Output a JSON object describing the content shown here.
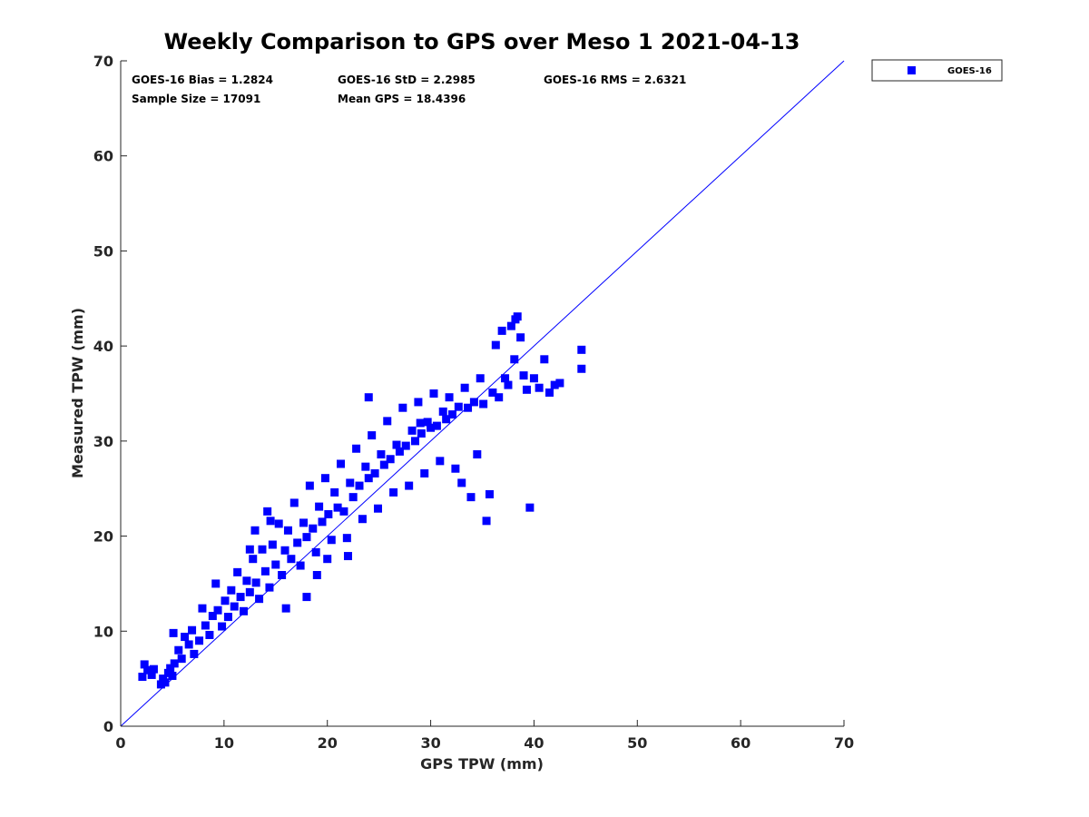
{
  "chart_data": {
    "type": "scatter",
    "title": "Weekly Comparison to GPS over Meso 1 2021-04-13",
    "xlabel": "GPS TPW (mm)",
    "ylabel": "Measured TPW (mm)",
    "xlim": [
      0,
      70
    ],
    "ylim": [
      0,
      70
    ],
    "xticks": [
      0,
      10,
      20,
      30,
      40,
      50,
      60,
      70
    ],
    "yticks": [
      0,
      10,
      20,
      30,
      40,
      50,
      60,
      70
    ],
    "grid": false,
    "legend_position": "outside-top-right",
    "colors": {
      "series": "#0000ff",
      "axis": "#262626"
    },
    "reference_line": {
      "name": "1:1",
      "x": [
        0,
        70
      ],
      "y": [
        0,
        70
      ]
    },
    "stats": {
      "bias": "GOES-16 Bias = 1.2824",
      "std": "GOES-16 StD = 2.2985",
      "rms": "GOES-16 RMS = 2.6321",
      "sample_size": "Sample Size = 17091",
      "mean_gps": "Mean GPS = 18.4396"
    },
    "series": [
      {
        "name": "GOES-16",
        "marker": "square",
        "color": "#0000ff",
        "points": [
          [
            2.1,
            5.2
          ],
          [
            2.3,
            6.5
          ],
          [
            2.6,
            5.9
          ],
          [
            3.0,
            5.4
          ],
          [
            3.2,
            6.0
          ],
          [
            3.9,
            4.4
          ],
          [
            4.1,
            5.0
          ],
          [
            4.3,
            4.6
          ],
          [
            4.6,
            5.6
          ],
          [
            4.8,
            6.1
          ],
          [
            5.0,
            5.3
          ],
          [
            5.2,
            6.6
          ],
          [
            5.1,
            9.8
          ],
          [
            5.6,
            8.0
          ],
          [
            5.9,
            7.1
          ],
          [
            6.2,
            9.4
          ],
          [
            6.6,
            8.6
          ],
          [
            6.9,
            10.1
          ],
          [
            7.1,
            7.6
          ],
          [
            7.6,
            9.0
          ],
          [
            7.9,
            12.4
          ],
          [
            8.2,
            10.6
          ],
          [
            8.6,
            9.6
          ],
          [
            8.9,
            11.6
          ],
          [
            9.2,
            15.0
          ],
          [
            9.4,
            12.2
          ],
          [
            9.8,
            10.5
          ],
          [
            10.1,
            13.2
          ],
          [
            10.4,
            11.5
          ],
          [
            10.7,
            14.3
          ],
          [
            11.0,
            12.6
          ],
          [
            11.3,
            16.2
          ],
          [
            11.6,
            13.6
          ],
          [
            11.9,
            12.1
          ],
          [
            12.2,
            15.3
          ],
          [
            12.5,
            14.1
          ],
          [
            12.8,
            17.6
          ],
          [
            13.1,
            15.1
          ],
          [
            13.4,
            13.4
          ],
          [
            13.7,
            18.6
          ],
          [
            14.0,
            16.3
          ],
          [
            14.2,
            22.6
          ],
          [
            14.4,
            14.6
          ],
          [
            14.7,
            19.1
          ],
          [
            15.0,
            17.0
          ],
          [
            15.3,
            21.3
          ],
          [
            15.6,
            15.9
          ],
          [
            15.9,
            18.5
          ],
          [
            16.2,
            20.6
          ],
          [
            16.5,
            17.6
          ],
          [
            16.8,
            23.5
          ],
          [
            17.1,
            19.3
          ],
          [
            17.4,
            16.9
          ],
          [
            17.7,
            21.4
          ],
          [
            18.0,
            19.9
          ],
          [
            18.3,
            25.3
          ],
          [
            18.6,
            20.8
          ],
          [
            18.9,
            18.3
          ],
          [
            19.2,
            23.1
          ],
          [
            19.5,
            21.5
          ],
          [
            19.8,
            26.1
          ],
          [
            20.1,
            22.3
          ],
          [
            20.4,
            19.6
          ],
          [
            20.7,
            24.6
          ],
          [
            21.0,
            23.0
          ],
          [
            21.3,
            27.6
          ],
          [
            21.6,
            22.6
          ],
          [
            21.9,
            19.8
          ],
          [
            22.2,
            25.6
          ],
          [
            22.5,
            24.1
          ],
          [
            22.8,
            29.2
          ],
          [
            23.1,
            25.3
          ],
          [
            23.4,
            21.8
          ],
          [
            23.7,
            27.3
          ],
          [
            24.0,
            26.1
          ],
          [
            24.3,
            30.6
          ],
          [
            24.6,
            26.6
          ],
          [
            24.9,
            22.9
          ],
          [
            25.2,
            28.6
          ],
          [
            25.5,
            27.5
          ],
          [
            25.8,
            32.1
          ],
          [
            26.1,
            28.1
          ],
          [
            26.4,
            24.6
          ],
          [
            26.7,
            29.6
          ],
          [
            27.0,
            28.9
          ],
          [
            27.3,
            33.5
          ],
          [
            27.6,
            29.5
          ],
          [
            27.9,
            25.3
          ],
          [
            28.2,
            31.1
          ],
          [
            28.5,
            30.0
          ],
          [
            28.8,
            34.1
          ],
          [
            29.1,
            30.8
          ],
          [
            29.4,
            26.6
          ],
          [
            29.7,
            32.0
          ],
          [
            30.0,
            31.4
          ],
          [
            30.3,
            35.0
          ],
          [
            30.6,
            31.6
          ],
          [
            30.9,
            27.9
          ],
          [
            31.2,
            33.1
          ],
          [
            31.5,
            32.3
          ],
          [
            31.8,
            34.6
          ],
          [
            32.1,
            32.8
          ],
          [
            32.4,
            27.1
          ],
          [
            32.7,
            33.6
          ],
          [
            33.0,
            25.6
          ],
          [
            33.3,
            35.6
          ],
          [
            33.6,
            33.5
          ],
          [
            33.9,
            24.1
          ],
          [
            34.2,
            34.1
          ],
          [
            34.5,
            28.6
          ],
          [
            34.8,
            36.6
          ],
          [
            35.1,
            33.9
          ],
          [
            35.4,
            21.6
          ],
          [
            35.7,
            24.4
          ],
          [
            36.0,
            35.1
          ],
          [
            36.3,
            40.1
          ],
          [
            36.6,
            34.6
          ],
          [
            36.9,
            41.6
          ],
          [
            37.2,
            36.6
          ],
          [
            37.5,
            35.9
          ],
          [
            37.8,
            42.1
          ],
          [
            38.1,
            38.6
          ],
          [
            38.4,
            43.1
          ],
          [
            38.7,
            40.9
          ],
          [
            39.0,
            36.9
          ],
          [
            39.3,
            35.4
          ],
          [
            39.6,
            23.0
          ],
          [
            40.0,
            36.6
          ],
          [
            40.5,
            35.6
          ],
          [
            41.0,
            38.6
          ],
          [
            41.5,
            35.1
          ],
          [
            42.0,
            35.9
          ],
          [
            42.5,
            36.1
          ],
          [
            44.6,
            39.6
          ],
          [
            44.6,
            37.6
          ],
          [
            38.2,
            42.8
          ],
          [
            29.0,
            31.9
          ],
          [
            24.0,
            34.6
          ],
          [
            22.0,
            17.9
          ],
          [
            20.0,
            17.6
          ],
          [
            19.0,
            15.9
          ],
          [
            18.0,
            13.6
          ],
          [
            16.0,
            12.4
          ],
          [
            14.5,
            21.6
          ],
          [
            13.0,
            20.6
          ],
          [
            12.5,
            18.6
          ]
        ]
      }
    ]
  }
}
